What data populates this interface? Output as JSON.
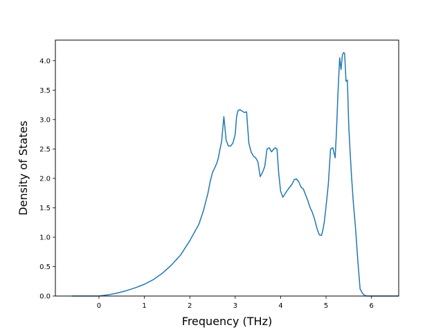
{
  "chart_data": {
    "type": "line",
    "title": "",
    "xlabel": "Frequency (THz)",
    "ylabel": "Density of States",
    "xlim": [
      -0.96,
      6.6
    ],
    "ylim": [
      0.0,
      4.35
    ],
    "grid": false,
    "legend": "none",
    "x_ticks": [
      0,
      1,
      2,
      3,
      4,
      5,
      6
    ],
    "x_tick_labels": [
      "0",
      "1",
      "2",
      "3",
      "4",
      "5",
      "6"
    ],
    "y_ticks": [
      0.0,
      0.5,
      1.0,
      1.5,
      2.0,
      2.5,
      3.0,
      3.5,
      4.0
    ],
    "y_tick_labels": [
      "0.0",
      "0.5",
      "1.0",
      "1.5",
      "2.0",
      "2.5",
      "3.0",
      "3.5",
      "4.0"
    ],
    "colors": {
      "line": "#1f77b4",
      "axes": "#000000",
      "background": "#ffffff"
    },
    "series": [
      {
        "x": [
          -0.6,
          -0.3,
          0.0,
          0.2,
          0.4,
          0.6,
          0.8,
          1.0,
          1.2,
          1.4,
          1.6,
          1.8,
          2.0,
          2.1,
          2.2,
          2.3,
          2.4,
          2.45,
          2.5,
          2.55,
          2.6,
          2.63,
          2.66,
          2.7,
          2.75,
          2.8,
          2.85,
          2.9,
          2.95,
          3.0,
          3.03,
          3.06,
          3.1,
          3.2,
          3.25,
          3.3,
          3.35,
          3.4,
          3.45,
          3.5,
          3.55,
          3.6,
          3.65,
          3.7,
          3.75,
          3.8,
          3.85,
          3.88,
          3.92,
          3.96,
          4.0,
          4.05,
          4.1,
          4.15,
          4.2,
          4.25,
          4.3,
          4.35,
          4.4,
          4.45,
          4.5,
          4.6,
          4.65,
          4.7,
          4.75,
          4.8,
          4.85,
          4.9,
          4.93,
          4.96,
          5.0,
          5.05,
          5.1,
          5.15,
          5.2,
          5.23,
          5.26,
          5.3,
          5.33,
          5.36,
          5.39,
          5.41,
          5.44,
          5.47,
          5.5,
          5.53,
          5.56,
          5.6,
          5.65,
          5.7,
          5.75,
          5.8,
          5.85,
          5.9,
          5.93,
          5.96,
          6.0,
          6.05,
          6.1,
          6.3,
          6.6
        ],
        "y": [
          0.0,
          0.0,
          0.0,
          0.02,
          0.05,
          0.09,
          0.14,
          0.2,
          0.28,
          0.39,
          0.53,
          0.7,
          0.94,
          1.08,
          1.22,
          1.45,
          1.75,
          1.95,
          2.1,
          2.18,
          2.27,
          2.35,
          2.48,
          2.62,
          3.05,
          2.65,
          2.55,
          2.55,
          2.6,
          2.75,
          3.05,
          3.15,
          3.17,
          3.12,
          3.13,
          2.6,
          2.45,
          2.38,
          2.35,
          2.28,
          2.03,
          2.1,
          2.2,
          2.5,
          2.52,
          2.45,
          2.5,
          2.52,
          2.5,
          2.07,
          1.78,
          1.68,
          1.74,
          1.8,
          1.85,
          1.9,
          1.98,
          1.99,
          1.94,
          1.85,
          1.82,
          1.62,
          1.5,
          1.42,
          1.3,
          1.15,
          1.04,
          1.03,
          1.12,
          1.25,
          1.52,
          1.9,
          2.5,
          2.52,
          2.35,
          2.8,
          3.4,
          4.05,
          3.85,
          4.1,
          4.14,
          4.12,
          3.65,
          3.67,
          2.9,
          2.45,
          2.05,
          1.6,
          1.15,
          0.6,
          0.12,
          0.05,
          0.01,
          0.0,
          0.0,
          0.0,
          0.0,
          0.0,
          0.0,
          0.0,
          0.0
        ]
      }
    ]
  }
}
